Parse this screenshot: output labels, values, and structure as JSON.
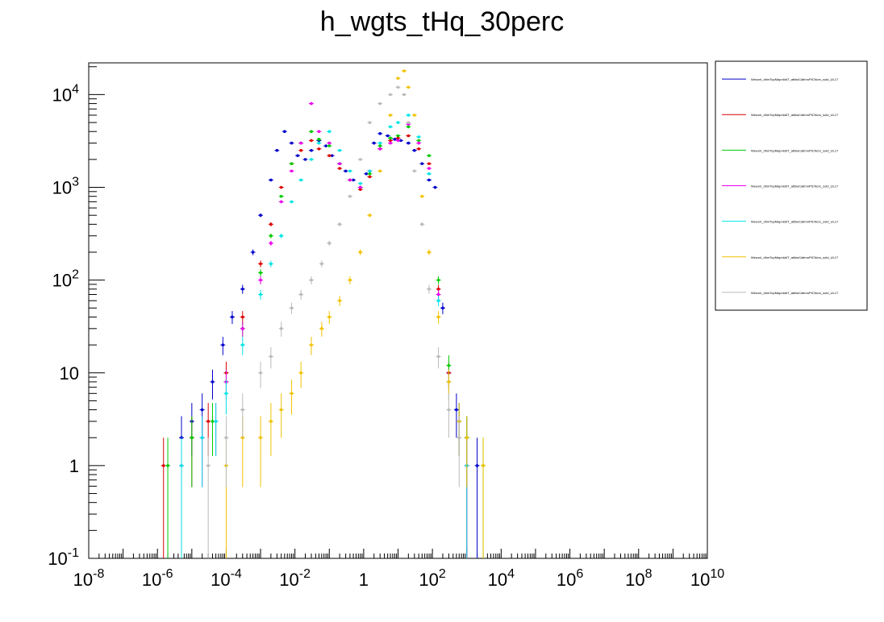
{
  "chart_data": {
    "type": "scatter",
    "title": "h_wgts_tHq_30perc",
    "xlabel": "",
    "ylabel": "",
    "x_scale": "log",
    "y_scale": "log",
    "xlim": [
      1e-08,
      10000000000.0
    ],
    "ylim": [
      0.1,
      22000
    ],
    "x_tick_labels": [
      "10^-8",
      "10^-6",
      "10^-4",
      "10^-2",
      "1",
      "10^2",
      "10^4",
      "10^6",
      "10^8",
      "10^10"
    ],
    "y_tick_labels": [
      "10^-1",
      "1",
      "10",
      "10^2",
      "10^3",
      "10^4"
    ],
    "legend_position": "right",
    "series": [
      {
        "color": "#0000cc",
        "x": [
          5e-06,
          1e-05,
          2e-05,
          4e-05,
          8e-05,
          0.00015,
          0.0003,
          0.0006,
          0.001,
          0.002,
          0.003,
          0.005,
          0.008,
          0.012,
          0.02,
          0.03,
          0.05,
          0.08,
          0.12,
          0.2,
          0.3,
          0.5,
          0.8,
          1.2,
          2,
          3,
          5,
          8,
          12,
          20,
          30,
          50,
          80,
          120,
          200,
          300,
          500,
          1000,
          2000
        ],
        "y": [
          2,
          3,
          4,
          8,
          20,
          40,
          80,
          200,
          500,
          1200,
          2500,
          4000,
          3000,
          2200,
          2000,
          2500,
          3200,
          2800,
          2200,
          1800,
          1500,
          1200,
          1000,
          1400,
          3000,
          3800,
          3600,
          3300,
          3200,
          3000,
          2500,
          1800,
          1200,
          1000,
          50,
          10,
          4,
          2,
          1
        ]
      },
      {
        "color": "#dd0000",
        "x": [
          1.5e-06,
          1e-05,
          3e-05,
          0.0001,
          0.0003,
          0.001,
          0.002,
          0.004,
          0.008,
          0.015,
          0.03,
          0.05,
          0.1,
          0.2,
          0.4,
          0.8,
          1.5,
          3,
          6,
          10,
          20,
          40,
          80,
          150,
          300,
          600,
          1000
        ],
        "y": [
          1,
          2,
          3,
          10,
          40,
          150,
          400,
          1000,
          1800,
          2500,
          3200,
          2600,
          2200,
          1600,
          1200,
          950,
          1300,
          2600,
          3200,
          3400,
          3600,
          2600,
          1800,
          80,
          10,
          3,
          1
        ]
      },
      {
        "color": "#00cc00",
        "x": [
          2e-06,
          1e-05,
          4e-05,
          0.0001,
          0.0003,
          0.001,
          0.002,
          0.004,
          0.008,
          0.015,
          0.03,
          0.05,
          0.1,
          0.2,
          0.4,
          0.8,
          1.5,
          3,
          6,
          10,
          20,
          40,
          80,
          150,
          300,
          600,
          1000,
          3000
        ],
        "y": [
          1,
          2,
          3,
          8,
          30,
          120,
          300,
          800,
          1800,
          3000,
          4000,
          3300,
          2800,
          1800,
          1200,
          1000,
          1400,
          2800,
          3400,
          3600,
          4500,
          3200,
          2200,
          100,
          12,
          3,
          2,
          1
        ]
      },
      {
        "color": "#ee00ee",
        "x": [
          5e-06,
          2e-05,
          5e-05,
          0.0001,
          0.0003,
          0.001,
          0.002,
          0.004,
          0.008,
          0.015,
          0.03,
          0.05,
          0.1,
          0.2,
          0.4,
          0.8,
          1.5,
          3,
          6,
          10,
          20,
          40,
          80,
          150,
          300,
          600,
          1000
        ],
        "y": [
          1,
          2,
          3,
          8,
          30,
          100,
          250,
          700,
          1500,
          3000,
          8000,
          4000,
          3000,
          1800,
          1200,
          1000,
          1500,
          2600,
          3000,
          3200,
          4800,
          3000,
          1600,
          70,
          8,
          3,
          1
        ]
      },
      {
        "color": "#00e5e5",
        "x": [
          5e-06,
          2e-05,
          5e-05,
          0.0001,
          0.0003,
          0.001,
          0.002,
          0.004,
          0.008,
          0.015,
          0.03,
          0.05,
          0.1,
          0.2,
          0.4,
          0.8,
          1.5,
          3,
          6,
          10,
          20,
          40,
          80,
          150,
          300,
          600,
          1000
        ],
        "y": [
          1,
          2,
          3,
          6,
          20,
          70,
          150,
          300,
          700,
          1200,
          2000,
          3000,
          4000,
          2500,
          1500,
          1100,
          1500,
          3000,
          4500,
          5000,
          6000,
          3500,
          1400,
          60,
          8,
          3,
          1
        ]
      },
      {
        "color": "#f2c200",
        "x": [
          0.0001,
          0.0003,
          0.001,
          0.002,
          0.004,
          0.008,
          0.015,
          0.03,
          0.06,
          0.1,
          0.2,
          0.4,
          0.8,
          1.5,
          3,
          6,
          10,
          15,
          20,
          30,
          50,
          80,
          150,
          300,
          600,
          1000,
          3000
        ],
        "y": [
          1,
          2,
          2,
          3,
          4,
          6,
          10,
          20,
          30,
          40,
          60,
          100,
          200,
          500,
          1500,
          6000,
          15000,
          18000,
          12000,
          6000,
          800,
          200,
          40,
          8,
          3,
          2,
          1
        ]
      },
      {
        "color": "#bbbbbb",
        "x": [
          3e-05,
          0.0001,
          0.0003,
          0.001,
          0.002,
          0.004,
          0.008,
          0.015,
          0.03,
          0.06,
          0.1,
          0.2,
          0.4,
          0.8,
          1.5,
          3,
          6,
          10,
          15,
          20,
          30,
          50,
          80,
          150,
          300,
          600
        ],
        "y": [
          1,
          2,
          4,
          10,
          15,
          30,
          50,
          70,
          100,
          150,
          250,
          400,
          800,
          2000,
          5000,
          8000,
          10000,
          12000,
          10000,
          5000,
          1500,
          400,
          80,
          15,
          4,
          2
        ]
      }
    ]
  },
  "legend": {
    "entries": [
      {
        "color": "#0000cc",
        "label": "Weuxnl_dhmTopMapnlddT_attdwCaltmnPtCNcrs_sold_UL17"
      },
      {
        "color": "#dd0000",
        "label": "Weuxnl_dhmTopMapnlddT_attdwCaltmnPtCNcrs_sold_UL17"
      },
      {
        "color": "#00cc00",
        "label": "Weuxnl_dhmTopMapnlddT_attdwCaltmnPtCNcrs_sold_UL17"
      },
      {
        "color": "#ee00ee",
        "label": "Weuxnl_dhmTopMapnlddT_attdwCaltmnPtCNcrs_sold_UL17"
      },
      {
        "color": "#00e5e5",
        "label": "Weuxnl_dhmTopMapnlddT_attdwCaltmnPtCNcrs_sold_UL17"
      },
      {
        "color": "#f2c200",
        "label": "Weuxnl_dhmTopMapnlddT_attdwCaltmnPtCNcrs_sold_UL17"
      },
      {
        "color": "#bbbbbb",
        "label": "Weuxnl_dhmTopMapnlddT_attdwCaltmnPtCNcrs_sold_UL17"
      }
    ]
  }
}
